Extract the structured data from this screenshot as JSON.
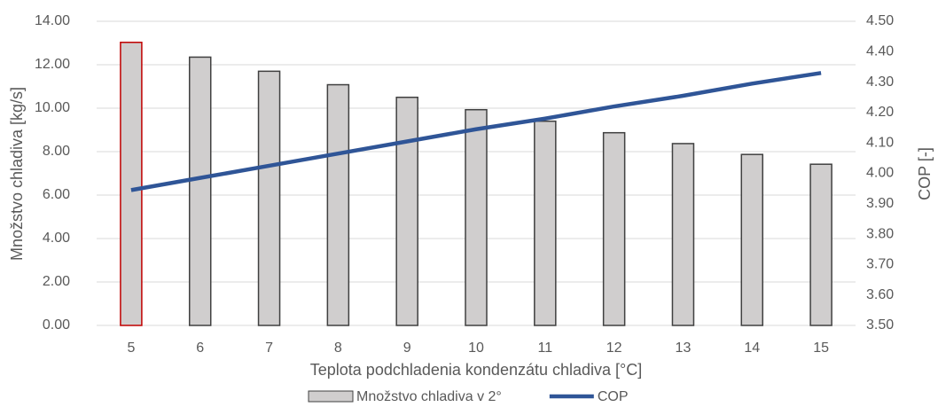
{
  "chart_data": {
    "type": "combo",
    "xlabel": "Teplota podchladenia kondenzátu chladiva [°C]",
    "ylabel": "Množstvo chladiva [kg/s]",
    "y2label": "COP [-]",
    "categories": [
      "5",
      "6",
      "7",
      "8",
      "9",
      "10",
      "11",
      "12",
      "13",
      "14",
      "15"
    ],
    "series": [
      {
        "name": "Množstvo chladiva v 2°",
        "type": "bar",
        "axis": "y",
        "color": "#d0cece",
        "edge_colors": [
          "#c00000",
          "#404040",
          "#404040",
          "#404040",
          "#404040",
          "#404040",
          "#404040",
          "#404040",
          "#404040",
          "#404040",
          "#404040"
        ],
        "values": [
          13.03,
          12.35,
          11.7,
          11.08,
          10.5,
          9.93,
          9.4,
          8.87,
          8.37,
          7.87,
          7.42
        ]
      },
      {
        "name": "COP",
        "type": "line",
        "axis": "y2",
        "color": "#2f5597",
        "values": [
          3.945,
          3.985,
          4.025,
          4.065,
          4.105,
          4.145,
          4.18,
          4.22,
          4.255,
          4.295,
          4.33
        ]
      }
    ],
    "ylim": [
      0,
      14
    ],
    "yticks": [
      {
        "value": 0,
        "label": "0.00"
      },
      {
        "value": 2,
        "label": "2.00"
      },
      {
        "value": 4,
        "label": "4.00"
      },
      {
        "value": 6,
        "label": "6.00"
      },
      {
        "value": 8,
        "label": "8.00"
      },
      {
        "value": 10,
        "label": "10.00"
      },
      {
        "value": 12,
        "label": "12.00"
      },
      {
        "value": 14,
        "label": "14.00"
      }
    ],
    "y2lim": [
      3.5,
      4.5
    ],
    "y2ticks": [
      {
        "value": 3.5,
        "label": "3.50"
      },
      {
        "value": 3.6,
        "label": "3.60"
      },
      {
        "value": 3.7,
        "label": "3.70"
      },
      {
        "value": 3.8,
        "label": "3.80"
      },
      {
        "value": 3.9,
        "label": "3.90"
      },
      {
        "value": 4.0,
        "label": "4.00"
      },
      {
        "value": 4.1,
        "label": "4.10"
      },
      {
        "value": 4.2,
        "label": "4.20"
      },
      {
        "value": 4.3,
        "label": "4.30"
      },
      {
        "value": 4.4,
        "label": "4.40"
      },
      {
        "value": 4.5,
        "label": "4.50"
      }
    ],
    "grid": true,
    "legend": "bottom"
  }
}
